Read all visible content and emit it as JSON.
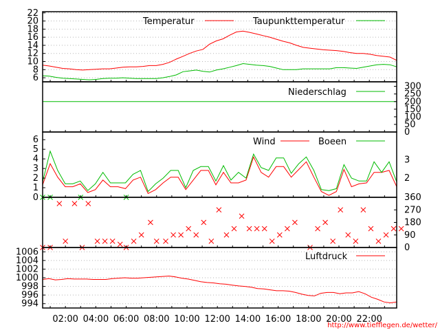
{
  "colors": {
    "red": "#ff0000",
    "green": "#00bb00",
    "grid": "#b5b5b5"
  },
  "footer_url": "http://www.tiefflegen.de/wetter/",
  "x_axis": {
    "hours": [
      0,
      1,
      2,
      3,
      4,
      5,
      6,
      7,
      8,
      9,
      10,
      11,
      12,
      13,
      14,
      15,
      16,
      17,
      18,
      19,
      20,
      21,
      22,
      23
    ],
    "tick_labels": [
      "02:00",
      "04:00",
      "06:00",
      "08:00",
      "10:00",
      "12:00",
      "14:00",
      "16:00",
      "18:00",
      "20:00",
      "22:00"
    ],
    "tick_hours": [
      2,
      4,
      6,
      8,
      10,
      12,
      14,
      16,
      18,
      20,
      22
    ],
    "range": [
      0.5,
      23.8
    ]
  },
  "chart_data": [
    {
      "type": "line",
      "ylim": [
        5,
        22.3
      ],
      "y_ticks": [
        6,
        8,
        10,
        12,
        14,
        16,
        18,
        20,
        22
      ],
      "grid": true,
      "series": [
        {
          "name": "Temperatur",
          "color": "red",
          "values": [
            9.1,
            8.9,
            8.6,
            8.3,
            8.2,
            8.0,
            7.9,
            8.0,
            8.1,
            8.2,
            8.2,
            8.4,
            8.6,
            8.7,
            8.7,
            8.8,
            9.0,
            9.0,
            9.3,
            9.8,
            10.6,
            11.3,
            12.0,
            12.6,
            13.0,
            14.3,
            15.1,
            15.6,
            16.5,
            17.3,
            17.5,
            17.2,
            16.8,
            16.4,
            16.0,
            15.5,
            15.0,
            14.6,
            14.0,
            13.5,
            13.3,
            13.1,
            12.9,
            12.8,
            12.7,
            12.5,
            12.2,
            12.0,
            12.0,
            11.8,
            11.5,
            11.3,
            11.1,
            10.3
          ]
        },
        {
          "name": "Taupunkttemperatur",
          "color": "green",
          "values": [
            6.5,
            6.4,
            6.1,
            5.9,
            5.8,
            5.7,
            5.6,
            5.5,
            5.6,
            5.8,
            5.9,
            5.9,
            6.0,
            5.9,
            5.8,
            5.8,
            5.8,
            5.8,
            6.0,
            6.3,
            6.7,
            7.5,
            7.7,
            7.9,
            7.6,
            7.4,
            7.9,
            8.2,
            8.6,
            9.0,
            9.5,
            9.3,
            9.1,
            9.0,
            8.8,
            8.4,
            8.0,
            8.0,
            8.0,
            8.2,
            8.2,
            8.2,
            8.2,
            8.2,
            8.5,
            8.5,
            8.4,
            8.3,
            8.6,
            8.9,
            9.2,
            9.3,
            9.2,
            8.7
          ]
        }
      ]
    },
    {
      "type": "line",
      "ylim": [
        0,
        330
      ],
      "y_ticks": [
        0,
        50,
        100,
        150,
        200,
        250,
        300
      ],
      "series": [
        {
          "name": "Niederschlag",
          "color": "green",
          "values": [
            200,
            200,
            200,
            200,
            200,
            200,
            200,
            200,
            200,
            200,
            200,
            200,
            200,
            200,
            200,
            200,
            200,
            200,
            200,
            200,
            200,
            200,
            200,
            200,
            200,
            200,
            200,
            200,
            200,
            200,
            200,
            200,
            200,
            200,
            200,
            200,
            200,
            200,
            200,
            200,
            200,
            200,
            200,
            200,
            200,
            200,
            200,
            200,
            200,
            200,
            200,
            200,
            200,
            200
          ]
        }
      ]
    },
    {
      "type": "line",
      "ylim": [
        0,
        6.8
      ],
      "y_ticks": [
        0,
        1,
        2,
        3,
        4,
        5,
        6
      ],
      "right_ticks": [
        {
          "label": "2",
          "value": 2.0
        },
        {
          "label": "3",
          "value": 3.9
        }
      ],
      "series": [
        {
          "name": "Wind",
          "color": "red",
          "values": [
            1.3,
            3.5,
            2.1,
            1.1,
            1.1,
            1.4,
            0.5,
            0.8,
            1.8,
            1.1,
            1.1,
            0.9,
            1.8,
            2.1,
            0.4,
            0.8,
            1.5,
            2.1,
            2.1,
            0.8,
            1.8,
            2.8,
            2.8,
            1.3,
            2.6,
            1.5,
            1.5,
            1.8,
            4.2,
            2.6,
            2.1,
            3.2,
            3.2,
            2.1,
            2.9,
            3.7,
            2.1,
            0.6,
            0.2,
            0.6,
            2.9,
            1.1,
            1.4,
            1.5,
            2.6,
            2.6,
            2.8,
            1.1
          ]
        },
        {
          "name": "Boeen",
          "color": "green",
          "values": [
            1.6,
            4.8,
            2.8,
            1.4,
            1.4,
            1.7,
            0.7,
            1.4,
            2.6,
            1.5,
            1.5,
            1.5,
            2.4,
            2.8,
            0.6,
            1.4,
            2.0,
            2.8,
            2.8,
            1.0,
            2.8,
            3.2,
            3.2,
            1.7,
            3.3,
            1.8,
            2.6,
            2.0,
            4.5,
            3.1,
            2.8,
            4.1,
            4.1,
            2.5,
            3.5,
            4.2,
            2.8,
            0.8,
            0.7,
            0.9,
            3.4,
            2.0,
            1.7,
            1.7,
            3.7,
            2.6,
            3.7,
            1.6
          ]
        }
      ]
    },
    {
      "type": "scatter",
      "ylim": [
        0,
        360
      ],
      "y_ticks": [
        0,
        90,
        180,
        270,
        360
      ],
      "points": [
        {
          "x": 0.5,
          "y": 0,
          "c": "red"
        },
        {
          "x": 0.5,
          "y": 360,
          "c": "green"
        },
        {
          "x": 1.0,
          "y": 0,
          "c": "red"
        },
        {
          "x": 1.0,
          "y": 360,
          "c": "green"
        },
        {
          "x": 1.6,
          "y": 315,
          "c": "red"
        },
        {
          "x": 2.0,
          "y": 45,
          "c": "red"
        },
        {
          "x": 2.6,
          "y": 315,
          "c": "red"
        },
        {
          "x": 3.0,
          "y": 360,
          "c": "green"
        },
        {
          "x": 3.1,
          "y": 0,
          "c": "red"
        },
        {
          "x": 3.5,
          "y": 315,
          "c": "red"
        },
        {
          "x": 4.1,
          "y": 45,
          "c": "red"
        },
        {
          "x": 4.6,
          "y": 45,
          "c": "red"
        },
        {
          "x": 5.1,
          "y": 45,
          "c": "red"
        },
        {
          "x": 5.6,
          "y": 23,
          "c": "red"
        },
        {
          "x": 6.0,
          "y": 0,
          "c": "red"
        },
        {
          "x": 6.0,
          "y": 360,
          "c": "green"
        },
        {
          "x": 6.5,
          "y": 45,
          "c": "red"
        },
        {
          "x": 7.0,
          "y": 90,
          "c": "red"
        },
        {
          "x": 7.6,
          "y": 180,
          "c": "red"
        },
        {
          "x": 8.0,
          "y": 45,
          "c": "red"
        },
        {
          "x": 8.6,
          "y": 45,
          "c": "red"
        },
        {
          "x": 9.1,
          "y": 90,
          "c": "red"
        },
        {
          "x": 9.6,
          "y": 90,
          "c": "red"
        },
        {
          "x": 10.1,
          "y": 135,
          "c": "red"
        },
        {
          "x": 10.6,
          "y": 90,
          "c": "red"
        },
        {
          "x": 11.1,
          "y": 180,
          "c": "red"
        },
        {
          "x": 11.6,
          "y": 45,
          "c": "red"
        },
        {
          "x": 12.1,
          "y": 270,
          "c": "red"
        },
        {
          "x": 12.6,
          "y": 90,
          "c": "red"
        },
        {
          "x": 13.1,
          "y": 135,
          "c": "red"
        },
        {
          "x": 13.6,
          "y": 225,
          "c": "red"
        },
        {
          "x": 14.1,
          "y": 135,
          "c": "red"
        },
        {
          "x": 14.6,
          "y": 135,
          "c": "red"
        },
        {
          "x": 15.1,
          "y": 135,
          "c": "red"
        },
        {
          "x": 15.6,
          "y": 45,
          "c": "red"
        },
        {
          "x": 16.1,
          "y": 90,
          "c": "red"
        },
        {
          "x": 16.6,
          "y": 135,
          "c": "red"
        },
        {
          "x": 17.1,
          "y": 180,
          "c": "red"
        },
        {
          "x": 18.1,
          "y": 0,
          "c": "red"
        },
        {
          "x": 18.6,
          "y": 135,
          "c": "red"
        },
        {
          "x": 19.1,
          "y": 180,
          "c": "red"
        },
        {
          "x": 19.6,
          "y": 45,
          "c": "red"
        },
        {
          "x": 20.1,
          "y": 270,
          "c": "red"
        },
        {
          "x": 20.6,
          "y": 90,
          "c": "red"
        },
        {
          "x": 21.1,
          "y": 45,
          "c": "red"
        },
        {
          "x": 21.6,
          "y": 270,
          "c": "red"
        },
        {
          "x": 22.1,
          "y": 135,
          "c": "red"
        },
        {
          "x": 22.6,
          "y": 45,
          "c": "red"
        },
        {
          "x": 23.1,
          "y": 90,
          "c": "red"
        },
        {
          "x": 23.6,
          "y": 135,
          "c": "red"
        },
        {
          "x": 24.1,
          "y": 135,
          "c": "red"
        }
      ]
    },
    {
      "type": "line",
      "ylim": [
        993,
        1007
      ],
      "y_ticks": [
        994,
        996,
        998,
        1000,
        1002,
        1004,
        1006
      ],
      "grid": true,
      "series": [
        {
          "name": "Luftdruck",
          "color": "red",
          "values": [
            999.6,
            999.8,
            999.5,
            999.6,
            999.8,
            999.7,
            999.7,
            999.7,
            999.6,
            999.6,
            999.6,
            999.8,
            999.9,
            1000.0,
            999.9,
            999.9,
            1000.0,
            1000.1,
            1000.2,
            1000.3,
            1000.4,
            1000.2,
            999.9,
            999.7,
            999.4,
            999.1,
            998.9,
            998.8,
            998.6,
            998.5,
            998.3,
            998.1,
            998.0,
            997.8,
            997.5,
            997.4,
            997.2,
            997.0,
            997.0,
            996.9,
            996.6,
            996.2,
            995.9,
            995.8,
            996.4,
            996.6,
            996.6,
            996.3,
            996.5,
            996.5,
            996.8,
            996.3,
            995.5,
            995.0,
            994.4,
            994.2,
            994.4
          ]
        }
      ]
    }
  ]
}
